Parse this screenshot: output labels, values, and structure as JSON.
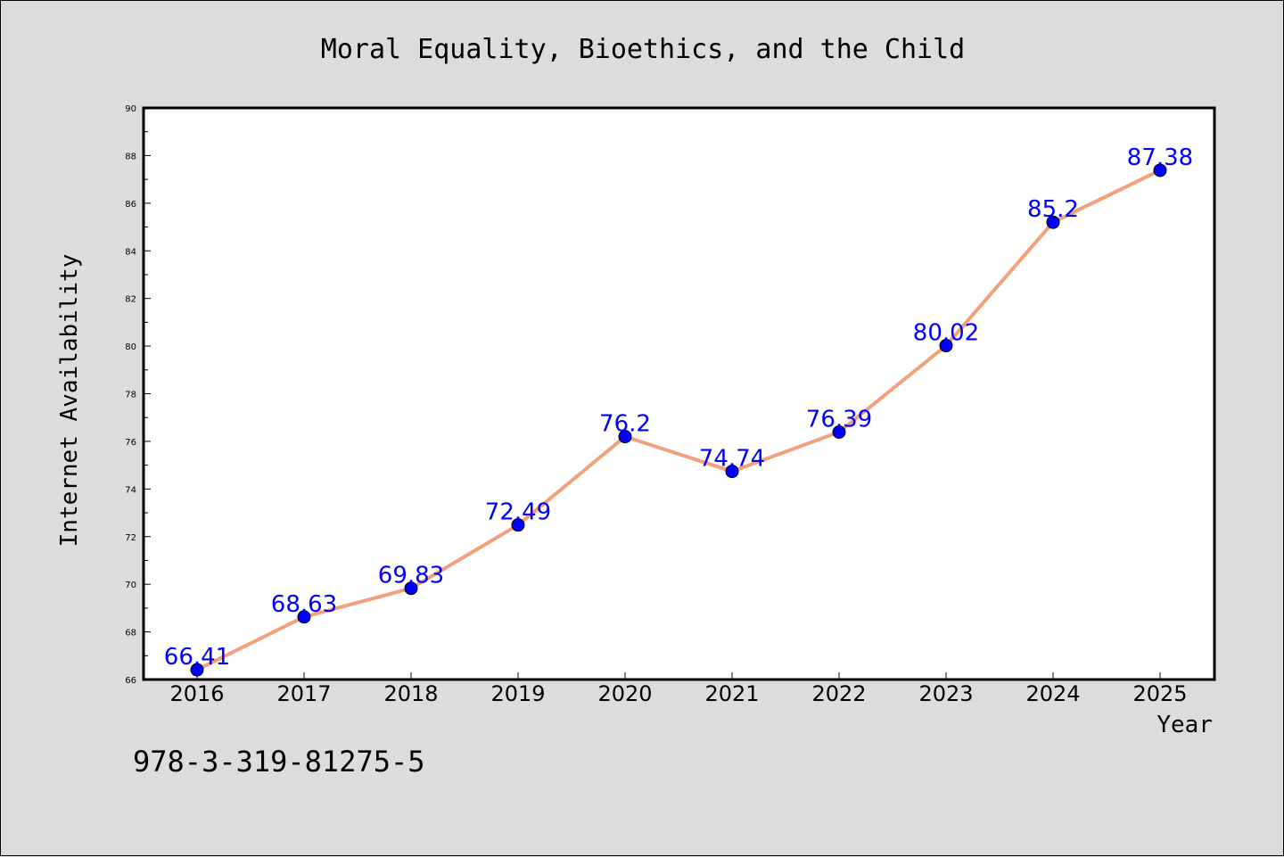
{
  "chart_data": {
    "type": "line",
    "title": "Moral Equality, Bioethics, and the Child",
    "xlabel": "Year",
    "ylabel": "Internet Availability",
    "x": [
      "2016",
      "2017",
      "2018",
      "2019",
      "2020",
      "2021",
      "2022",
      "2023",
      "2024",
      "2025"
    ],
    "series": [
      {
        "values": [
          66.41,
          68.63,
          69.83,
          72.49,
          76.2,
          74.74,
          76.39,
          80.02,
          85.2,
          87.38
        ],
        "data_labels": [
          "66.41",
          "68.63",
          "69.83",
          "72.49",
          "76.2",
          "74.74",
          "76.39",
          "80.02",
          "85.2",
          "87.38"
        ],
        "line_color": "#f4a07c",
        "marker_color": "#0000ff"
      }
    ],
    "ylim": [
      66,
      90
    ],
    "yticks": [
      "66",
      "68",
      "70",
      "72",
      "74",
      "76",
      "78",
      "80",
      "82",
      "84",
      "86",
      "88",
      "90"
    ],
    "grid": false,
    "legend": "none"
  },
  "footer": {
    "isbn": "978-3-319-81275-5"
  },
  "colors": {
    "background": "#dcdcdc",
    "plot_area": "#ffffff",
    "line": "#f4a07c",
    "marker": "#0000ff",
    "data_label": "#0000ff"
  }
}
